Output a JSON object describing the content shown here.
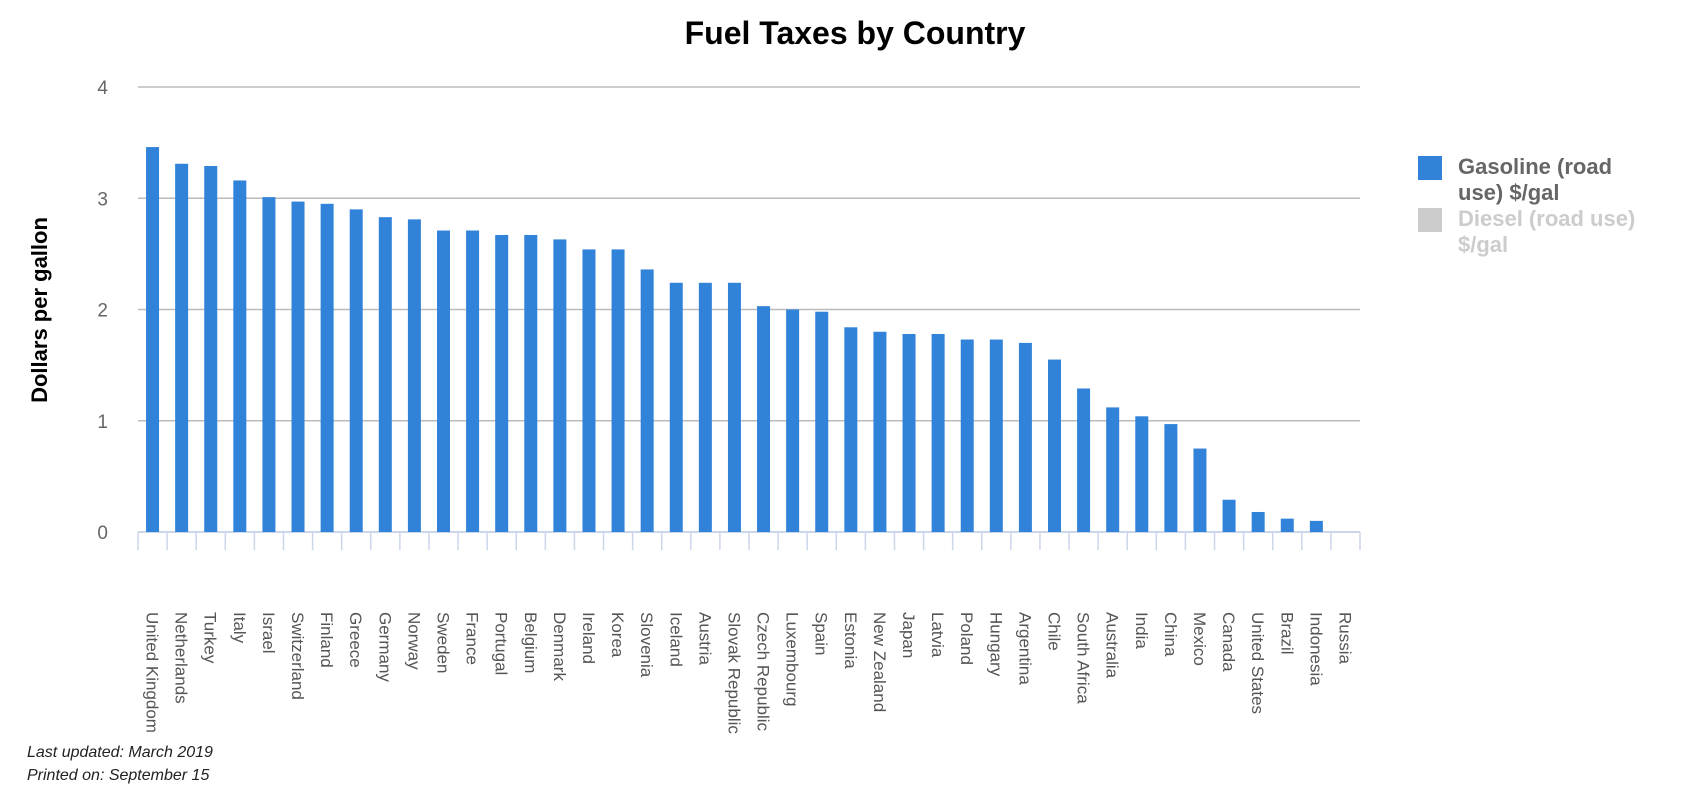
{
  "chart_data": {
    "type": "bar",
    "title": "Fuel Taxes by Country",
    "y_label": "Dollars per gallon",
    "categories": [
      "United Kingdom",
      "Netherlands",
      "Turkey",
      "Italy",
      "Israel",
      "Switzerland",
      "Finland",
      "Greece",
      "Germany",
      "Norway",
      "Sweden",
      "France",
      "Portugal",
      "Belgium",
      "Denmark",
      "Ireland",
      "Korea",
      "Slovenia",
      "Iceland",
      "Austria",
      "Slovak Republic",
      "Czech Republic",
      "Luxembourg",
      "Spain",
      "Estonia",
      "New Zealand",
      "Japan",
      "Latvia",
      "Poland",
      "Hungary",
      "Argentina",
      "Chile",
      "South Africa",
      "Australia",
      "India",
      "China",
      "Mexico",
      "Canada",
      "United States",
      "Brazil",
      "Indonesia",
      "Russia"
    ],
    "series": [
      {
        "name": "Gasoline (road use) $/gal",
        "color": "#3182d9",
        "values": [
          3.46,
          3.31,
          3.29,
          3.16,
          3.01,
          2.97,
          2.95,
          2.9,
          2.83,
          2.81,
          2.71,
          2.71,
          2.67,
          2.67,
          2.63,
          2.54,
          2.54,
          2.36,
          2.24,
          2.24,
          2.24,
          2.03,
          2.0,
          1.98,
          1.84,
          1.8,
          1.78,
          1.78,
          1.73,
          1.73,
          1.7,
          1.55,
          1.29,
          1.12,
          1.04,
          0.97,
          0.75,
          0.29,
          0.18,
          0.12,
          0.1,
          null
        ]
      },
      {
        "name": "Diesel (road use) $/gal",
        "color": "#cccccc",
        "hidden": true,
        "values": [
          null,
          null,
          null,
          null,
          null,
          null,
          null,
          null,
          null,
          null,
          null,
          null,
          null,
          null,
          null,
          null,
          null,
          null,
          null,
          null,
          null,
          null,
          null,
          null,
          null,
          null,
          null,
          null,
          null,
          null,
          null,
          null,
          null,
          null,
          null,
          null,
          null,
          null,
          null,
          null,
          null,
          null
        ]
      }
    ],
    "ylim": [
      0,
      4
    ],
    "yticks": [
      0,
      1,
      2,
      3,
      4
    ],
    "grid": true,
    "footnotes": [
      "Last updated: March 2019",
      "Printed on: September 15"
    ]
  }
}
